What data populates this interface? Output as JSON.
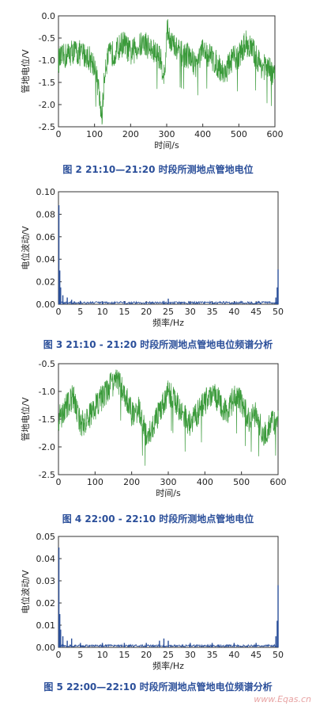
{
  "chart_data": [
    {
      "type": "line",
      "caption": "图 2   21:10—21:20 时段所测地点管地电位",
      "xlabel": "时间/s",
      "ylabel": "管地电位/V",
      "xlim": [
        0,
        600
      ],
      "ylim": [
        -2.5,
        0.0
      ],
      "xticks": [
        "0",
        "100",
        "200",
        "300",
        "400",
        "500",
        "600"
      ],
      "yticks": [
        "0.0",
        "-0.5",
        "-1.0",
        "-1.5",
        "-2.0",
        "-2.5"
      ],
      "color": "#3a9a3a",
      "series": [
        {
          "x": [
            0,
            20,
            40,
            60,
            80,
            100,
            110,
            120,
            130,
            140,
            160,
            180,
            200,
            220,
            240,
            260,
            280,
            295,
            300,
            320,
            340,
            360,
            380,
            400,
            420,
            440,
            460,
            480,
            500,
            520,
            540,
            560,
            580,
            600
          ],
          "y": [
            -1.0,
            -0.9,
            -0.8,
            -0.85,
            -0.9,
            -1.1,
            -1.6,
            -2.3,
            -1.1,
            -0.9,
            -0.8,
            -0.6,
            -0.85,
            -0.7,
            -0.6,
            -0.8,
            -0.9,
            -1.4,
            -0.3,
            -0.7,
            -0.85,
            -0.9,
            -1.1,
            -0.8,
            -0.9,
            -1.1,
            -1.3,
            -1.0,
            -0.9,
            -0.6,
            -0.8,
            -1.1,
            -1.2,
            -1.3
          ]
        }
      ]
    },
    {
      "type": "bar",
      "caption": "图 3   21:10 - 21:20 时段所测地点管地电位频谱分析",
      "xlabel": "频率/Hz",
      "ylabel": "电位波动/V",
      "xlim": [
        0,
        50
      ],
      "ylim": [
        0,
        0.1
      ],
      "xticks": [
        "0",
        "5",
        "10",
        "15",
        "20",
        "25",
        "30",
        "35",
        "40",
        "45",
        "50"
      ],
      "yticks": [
        "0.10",
        "0.08",
        "0.06",
        "0.04",
        "0.02",
        "0.00"
      ],
      "color": "#2a4f9a",
      "series": [
        {
          "x": [
            0.1,
            0.3,
            0.5,
            1,
            2,
            3,
            5,
            10,
            15,
            20,
            24,
            25,
            30,
            35,
            40,
            45,
            49.5,
            49.8,
            50
          ],
          "y": [
            0.088,
            0.03,
            0.015,
            0.008,
            0.006,
            0.004,
            0.003,
            0.002,
            0.002,
            0.002,
            0.003,
            0.005,
            0.002,
            0.002,
            0.002,
            0.002,
            0.006,
            0.015,
            0.031
          ]
        }
      ]
    },
    {
      "type": "line",
      "caption": "图 4   22:00 - 22:10 时段所测地点管地电位",
      "xlabel": "时间/s",
      "ylabel": "管地电位/V",
      "xlim": [
        0,
        600
      ],
      "ylim": [
        -2.5,
        -0.5
      ],
      "xticks": [
        "0",
        "100",
        "200",
        "300",
        "400",
        "500",
        "600"
      ],
      "yticks": [
        "-0.5",
        "-1.0",
        "-1.5",
        "-2.0",
        "-2.5"
      ],
      "color": "#3a9a3a",
      "series": [
        {
          "x": [
            0,
            20,
            40,
            60,
            80,
            100,
            120,
            140,
            160,
            180,
            200,
            220,
            240,
            260,
            280,
            300,
            320,
            340,
            360,
            380,
            400,
            420,
            440,
            460,
            480,
            500,
            520,
            540,
            560,
            580,
            600
          ],
          "y": [
            -1.5,
            -1.3,
            -1.1,
            -1.6,
            -1.5,
            -1.3,
            -1.1,
            -0.9,
            -0.8,
            -1.0,
            -1.4,
            -1.3,
            -1.8,
            -1.6,
            -1.3,
            -1.0,
            -1.2,
            -1.4,
            -1.6,
            -1.4,
            -1.2,
            -1.0,
            -1.2,
            -1.4,
            -1.1,
            -1.2,
            -1.5,
            -1.4,
            -1.8,
            -1.6,
            -1.5
          ]
        }
      ]
    },
    {
      "type": "bar",
      "caption": "图 5   22:00—22:10 时段所测地点管地电位频谱分析",
      "xlabel": "频率/Hz",
      "ylabel": "电位波动/V",
      "xlim": [
        0,
        50
      ],
      "ylim": [
        0,
        0.05
      ],
      "xticks": [
        "0",
        "5",
        "10",
        "15",
        "20",
        "25",
        "30",
        "35",
        "40",
        "45",
        "50"
      ],
      "yticks": [
        "0.05",
        "0.04",
        "0.03",
        "0.02",
        "0.01",
        "0.00"
      ],
      "color": "#2a4f9a",
      "series": [
        {
          "x": [
            0.1,
            0.3,
            0.5,
            1,
            2,
            3,
            5,
            10,
            15,
            20,
            23,
            24,
            25,
            30,
            35,
            40,
            45,
            49.5,
            49.8,
            50
          ],
          "y": [
            0.045,
            0.015,
            0.008,
            0.005,
            0.003,
            0.004,
            0.002,
            0.002,
            0.002,
            0.002,
            0.003,
            0.004,
            0.003,
            0.002,
            0.002,
            0.002,
            0.002,
            0.005,
            0.012,
            0.028
          ]
        }
      ]
    }
  ],
  "watermark": "www.Eqas.cn"
}
